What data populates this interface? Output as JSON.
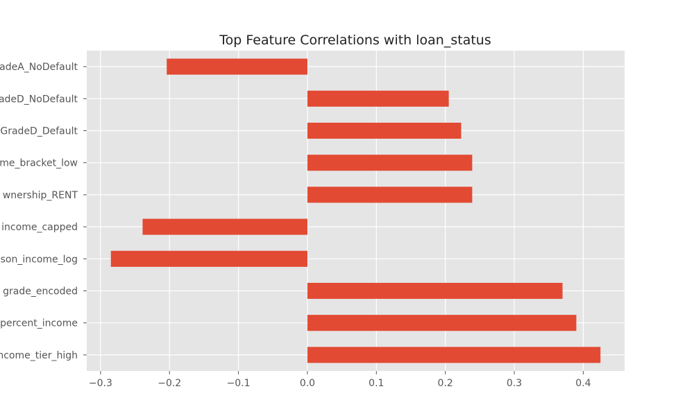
{
  "chart_data": {
    "type": "bar",
    "orientation": "horizontal",
    "title": "Top Feature Correlations with loan_status",
    "xlabel": "",
    "ylabel": "",
    "categories": [
      "adeA_NoDefault",
      "adeD_NoDefault",
      "GradeD_Default",
      "me_bracket_low",
      "wnership_RENT",
      "income_capped",
      "son_income_log",
      "grade_encoded",
      "percent_income",
      "ncome_tier_high"
    ],
    "values": [
      -0.204,
      0.205,
      0.223,
      0.239,
      0.239,
      -0.239,
      -0.285,
      0.37,
      0.39,
      0.425
    ],
    "xlim": [
      -0.32,
      0.46
    ],
    "xticks": [
      "−0.3",
      "−0.2",
      "−0.1",
      "0.0",
      "0.1",
      "0.2",
      "0.3",
      "0.4"
    ],
    "grid": true,
    "colors": {
      "bar": "#E24A33",
      "plot_background": "#E5E5E5",
      "grid": "#FFFFFF"
    }
  }
}
